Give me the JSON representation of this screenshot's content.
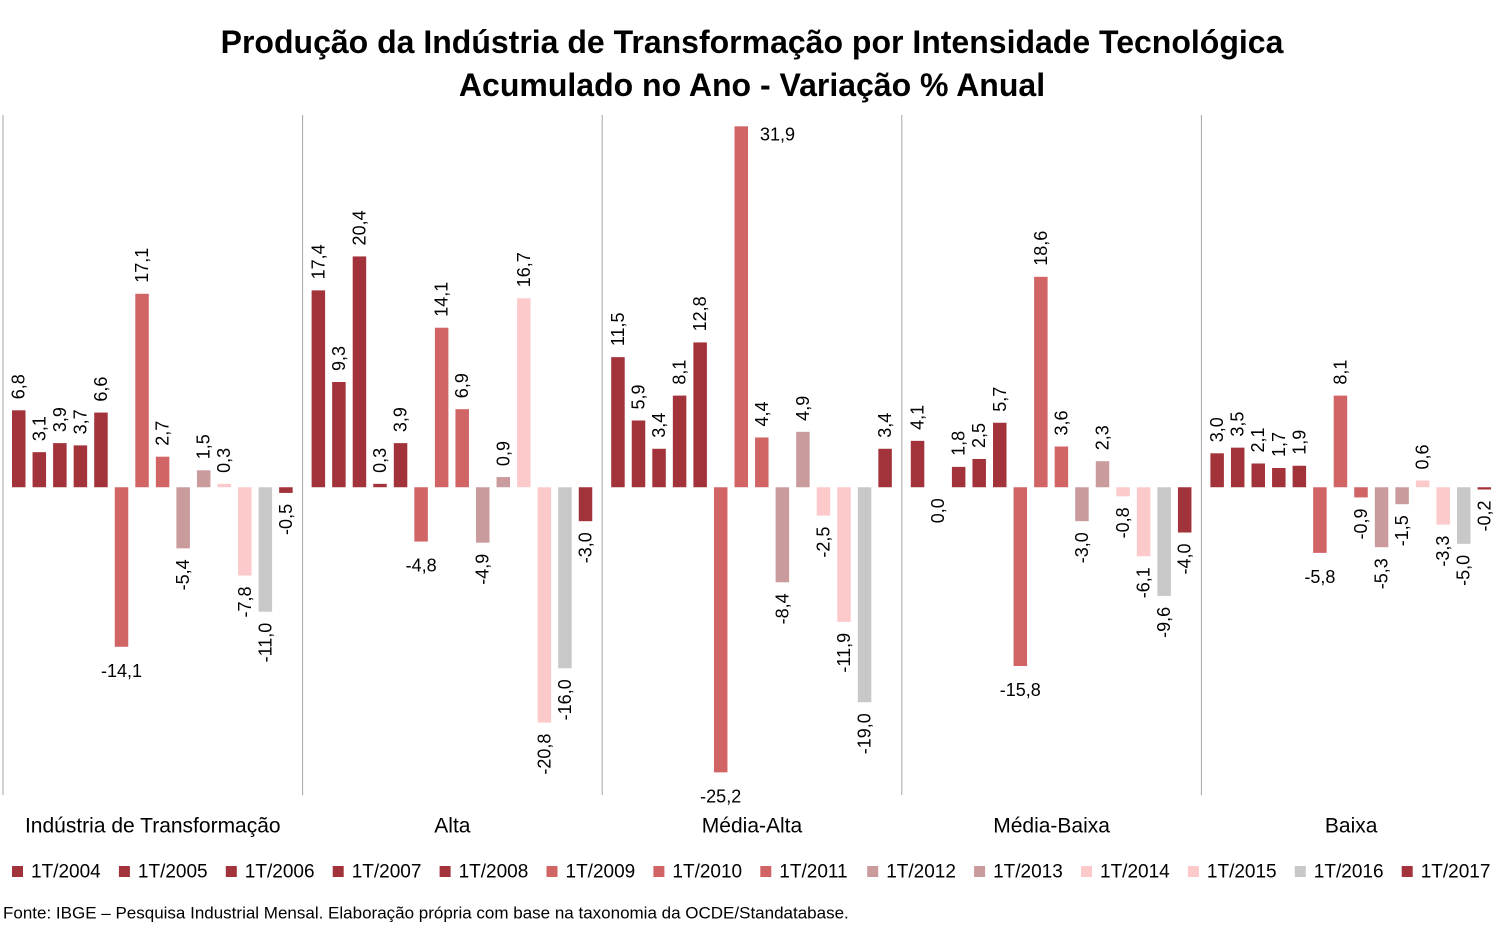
{
  "source": "Fonte: IBGE – Pesquisa Industrial Mensal. Elaboração própria com base na taxonomia da OCDE/Standatabase.",
  "chart_data": {
    "type": "bar",
    "title": "Produção da Indústria de Transformação por Intensidade Tecnológica",
    "subtitle": "Acumulado no Ano - Variação % Anual",
    "categories": [
      "Indústria de Transformação",
      "Alta",
      "Média-Alta",
      "Média-Baixa",
      "Baixa"
    ],
    "series": [
      {
        "name": "1T/2004",
        "color": "#A3333A",
        "values": [
          6.8,
          17.4,
          11.5,
          4.1,
          3.0
        ],
        "labels": [
          "6,8",
          "17,4",
          "11,5",
          "4,1",
          "3,0"
        ]
      },
      {
        "name": "1T/2005",
        "color": "#A3333A",
        "values": [
          3.1,
          9.3,
          5.9,
          0.0,
          3.5
        ],
        "labels": [
          "3,1",
          "9,3",
          "5,9",
          "0,0",
          "3,5"
        ]
      },
      {
        "name": "1T/2006",
        "color": "#A3333A",
        "values": [
          3.9,
          20.4,
          3.4,
          1.8,
          2.1
        ],
        "labels": [
          "3,9",
          "20,4",
          "3,4",
          "1,8",
          "2,1"
        ]
      },
      {
        "name": "1T/2007",
        "color": "#A3333A",
        "values": [
          3.7,
          0.3,
          8.1,
          2.5,
          1.7
        ],
        "labels": [
          "3,7",
          "0,3",
          "8,1",
          "2,5",
          "1,7"
        ]
      },
      {
        "name": "1T/2008",
        "color": "#A3333A",
        "values": [
          6.6,
          3.9,
          12.8,
          5.7,
          1.9
        ],
        "labels": [
          "6,6",
          "3,9",
          "12,8",
          "5,7",
          "1,9"
        ]
      },
      {
        "name": "1T/2009",
        "color": "#D16566",
        "values": [
          -14.1,
          -4.8,
          -25.2,
          -15.8,
          -5.8
        ],
        "labels": [
          "-14,1",
          "-4,8",
          "-25,2",
          "-15,8",
          "-5,8"
        ]
      },
      {
        "name": "1T/2010",
        "color": "#D16566",
        "values": [
          17.1,
          14.1,
          31.9,
          18.6,
          8.1
        ],
        "labels": [
          "17,1",
          "14,1",
          "31,9",
          "18,6",
          "8,1"
        ]
      },
      {
        "name": "1T/2011",
        "color": "#D16566",
        "values": [
          2.7,
          6.9,
          4.4,
          3.6,
          -0.9
        ],
        "labels": [
          "2,7",
          "6,9",
          "4,4",
          "3,6",
          "-0,9"
        ]
      },
      {
        "name": "1T/2012",
        "color": "#C99B9D",
        "values": [
          -5.4,
          -4.9,
          -8.4,
          -3.0,
          -5.3
        ],
        "labels": [
          "-5,4",
          "-4,9",
          "-8,4",
          "-3,0",
          "-5,3"
        ]
      },
      {
        "name": "1T/2013",
        "color": "#C99B9D",
        "values": [
          1.5,
          0.9,
          4.9,
          2.3,
          -1.5
        ],
        "labels": [
          "1,5",
          "0,9",
          "4,9",
          "2,3",
          "-1,5"
        ]
      },
      {
        "name": "1T/2014",
        "color": "#FCCACA",
        "values": [
          0.3,
          16.7,
          -2.5,
          -0.8,
          0.6
        ],
        "labels": [
          "0,3",
          "16,7",
          "-2,5",
          "-0,8",
          "0,6"
        ]
      },
      {
        "name": "1T/2015",
        "color": "#FCCACA",
        "values": [
          -7.8,
          -20.8,
          -11.9,
          -6.1,
          -3.3
        ],
        "labels": [
          "-7,8",
          "-20,8",
          "-11,9",
          "-6,1",
          "-3,3"
        ]
      },
      {
        "name": "1T/2016",
        "color": "#C8C8C8",
        "values": [
          -11.0,
          -16.0,
          -19.0,
          -9.6,
          -5.0
        ],
        "labels": [
          "-11,0",
          "-16,0",
          "-19,0",
          "-9,6",
          "-5,0"
        ]
      },
      {
        "name": "1T/2017",
        "color": "#A3333A",
        "values": [
          -0.5,
          -3.0,
          3.4,
          -4.0,
          -0.2
        ],
        "labels": [
          "-0,5",
          "-3,0",
          "3,4",
          "-4,0",
          "-0,2"
        ]
      }
    ],
    "ylim": [
      -27.2,
      32.9
    ],
    "vertical_gridlines": true,
    "horizontal_gridlines": false,
    "legend": "bottom"
  }
}
